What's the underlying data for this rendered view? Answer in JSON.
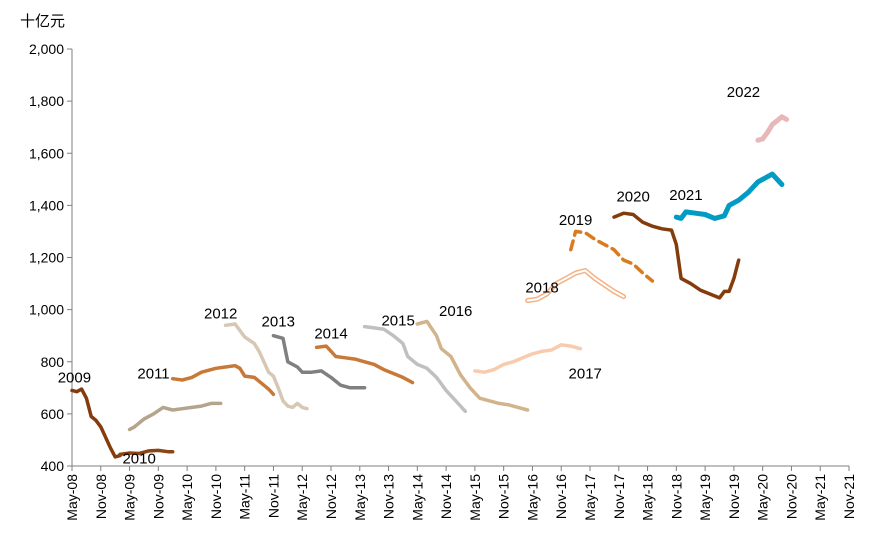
{
  "chart_data": {
    "type": "line",
    "title": "",
    "unit_label": "十亿元",
    "xlabel": "",
    "ylabel": "十亿元",
    "ylim": [
      400,
      2000
    ],
    "y_ticks": [
      "400",
      "600",
      "800",
      "1,000",
      "1,200",
      "1,400",
      "1,600",
      "1,800",
      "2,000"
    ],
    "x_ticks": [
      "May-08",
      "Nov-08",
      "May-09",
      "Nov-09",
      "May-10",
      "Nov-10",
      "May-11",
      "Nov-11",
      "May-12",
      "Nov-12",
      "May-13",
      "Nov-13",
      "May-14",
      "Nov-14",
      "May-15",
      "Nov-15",
      "May-16",
      "Nov-16",
      "May-17",
      "Nov-17",
      "May-18",
      "Nov-18",
      "May-19",
      "Nov-19",
      "May-20",
      "Nov-20",
      "May-21",
      "Nov-21"
    ],
    "x_units": "months since May-08",
    "series": [
      {
        "name": "2009",
        "color": "#843c0c",
        "style": "solid",
        "points": [
          [
            0,
            690
          ],
          [
            1,
            685
          ],
          [
            2,
            695
          ],
          [
            3,
            660
          ],
          [
            4,
            590
          ],
          [
            5,
            575
          ],
          [
            6,
            550
          ],
          [
            7,
            510
          ],
          [
            8,
            470
          ],
          [
            9,
            435
          ],
          [
            10,
            440
          ]
        ]
      },
      {
        "name": "2010",
        "color": "#8b4513",
        "style": "solid",
        "points": [
          [
            10,
            445
          ],
          [
            12,
            450
          ],
          [
            14,
            448
          ],
          [
            16,
            458
          ],
          [
            18,
            460
          ],
          [
            20,
            455
          ],
          [
            21,
            455
          ]
        ]
      },
      {
        "name": "2011",
        "color": "#b4a48c",
        "style": "solid",
        "points": [
          [
            12,
            540
          ],
          [
            13,
            550
          ],
          [
            15,
            580
          ],
          [
            17,
            600
          ],
          [
            19,
            625
          ],
          [
            21,
            615
          ],
          [
            23,
            620
          ],
          [
            25,
            625
          ],
          [
            27,
            630
          ],
          [
            29,
            640
          ],
          [
            31,
            640
          ]
        ]
      },
      {
        "name": "2012",
        "color": "#c87937",
        "style": "solid",
        "points": [
          [
            21,
            735
          ],
          [
            23,
            730
          ],
          [
            25,
            740
          ],
          [
            27,
            760
          ],
          [
            30,
            775
          ],
          [
            32,
            780
          ],
          [
            34,
            785
          ],
          [
            35,
            775
          ],
          [
            36,
            745
          ],
          [
            38,
            740
          ],
          [
            40,
            710
          ],
          [
            41,
            695
          ],
          [
            42,
            675
          ]
        ]
      },
      {
        "name": "2013",
        "color": "#d6c8b4",
        "style": "solid",
        "points": [
          [
            32,
            940
          ],
          [
            34,
            945
          ],
          [
            36,
            895
          ],
          [
            38,
            870
          ],
          [
            39,
            840
          ],
          [
            40,
            800
          ],
          [
            41,
            760
          ],
          [
            42,
            745
          ],
          [
            43,
            700
          ],
          [
            44,
            650
          ],
          [
            45,
            630
          ],
          [
            46,
            625
          ],
          [
            47,
            640
          ],
          [
            48,
            625
          ],
          [
            49,
            620
          ]
        ]
      },
      {
        "name": "2014",
        "color": "#808080",
        "style": "solid",
        "points": [
          [
            42,
            900
          ],
          [
            44,
            890
          ],
          [
            45,
            800
          ],
          [
            47,
            780
          ],
          [
            48,
            760
          ],
          [
            50,
            760
          ],
          [
            52,
            765
          ],
          [
            54,
            740
          ],
          [
            56,
            710
          ],
          [
            58,
            700
          ],
          [
            61,
            700
          ]
        ]
      },
      {
        "name": "2015",
        "color": "#c87937",
        "style": "solid",
        "points": [
          [
            51,
            855
          ],
          [
            53,
            860
          ],
          [
            55,
            820
          ],
          [
            57,
            815
          ],
          [
            59,
            810
          ],
          [
            61,
            800
          ],
          [
            63,
            790
          ],
          [
            65,
            770
          ],
          [
            67,
            755
          ],
          [
            69,
            740
          ],
          [
            71,
            720
          ]
        ]
      },
      {
        "name": "2016",
        "color": "#c0c0c0",
        "style": "solid",
        "points": [
          [
            61,
            935
          ],
          [
            63,
            930
          ],
          [
            65,
            925
          ],
          [
            67,
            900
          ],
          [
            69,
            870
          ],
          [
            70,
            820
          ],
          [
            72,
            790
          ],
          [
            74,
            775
          ],
          [
            76,
            740
          ],
          [
            78,
            690
          ],
          [
            80,
            650
          ],
          [
            82,
            610
          ]
        ]
      },
      {
        "name": "2017",
        "color": "#d2b48c",
        "style": "solid",
        "points": [
          [
            72,
            945
          ],
          [
            74,
            955
          ],
          [
            76,
            900
          ],
          [
            77,
            850
          ],
          [
            79,
            820
          ],
          [
            81,
            750
          ],
          [
            83,
            700
          ],
          [
            85,
            660
          ],
          [
            87,
            650
          ],
          [
            89,
            640
          ],
          [
            91,
            635
          ],
          [
            93,
            625
          ],
          [
            95,
            615
          ]
        ]
      },
      {
        "name": "2018",
        "color": "#f8cbad",
        "style": "solid",
        "points": [
          [
            84,
            765
          ],
          [
            86,
            760
          ],
          [
            88,
            770
          ],
          [
            90,
            790
          ],
          [
            92,
            800
          ],
          [
            94,
            815
          ],
          [
            96,
            830
          ],
          [
            98,
            840
          ],
          [
            100,
            845
          ],
          [
            102,
            865
          ],
          [
            104,
            860
          ],
          [
            106,
            850
          ]
        ]
      },
      {
        "name": "2019",
        "color": "#ffffff",
        "outline": "#f4b183",
        "style": "outline",
        "points": [
          [
            95,
            1035
          ],
          [
            97,
            1040
          ],
          [
            99,
            1060
          ],
          [
            101,
            1100
          ],
          [
            103,
            1120
          ],
          [
            105,
            1140
          ],
          [
            107,
            1150
          ],
          [
            109,
            1120
          ],
          [
            111,
            1095
          ],
          [
            113,
            1070
          ],
          [
            115,
            1050
          ]
        ]
      },
      {
        "name": "2020",
        "color": "#d97b1f",
        "style": "dashed",
        "points": [
          [
            104,
            1230
          ],
          [
            105,
            1300
          ],
          [
            107,
            1295
          ],
          [
            109,
            1270
          ],
          [
            111,
            1250
          ],
          [
            113,
            1230
          ],
          [
            115,
            1190
          ],
          [
            117,
            1175
          ],
          [
            119,
            1140
          ],
          [
            121,
            1110
          ]
        ]
      },
      {
        "name": "2021",
        "color": "#843c0c",
        "style": "solid",
        "points": [
          [
            113,
            1355
          ],
          [
            115,
            1370
          ],
          [
            117,
            1365
          ],
          [
            119,
            1335
          ],
          [
            121,
            1320
          ],
          [
            123,
            1310
          ],
          [
            125,
            1305
          ],
          [
            126,
            1250
          ],
          [
            127,
            1120
          ],
          [
            129,
            1100
          ],
          [
            131,
            1075
          ],
          [
            133,
            1060
          ],
          [
            135,
            1045
          ],
          [
            136,
            1070
          ],
          [
            137,
            1070
          ],
          [
            138,
            1120
          ],
          [
            139,
            1190
          ]
        ]
      },
      {
        "name": "2022-blue",
        "color": "#009cc4",
        "style": "thick",
        "points": [
          [
            126,
            1355
          ],
          [
            127,
            1350
          ],
          [
            128,
            1375
          ],
          [
            130,
            1370
          ],
          [
            132,
            1365
          ],
          [
            134,
            1350
          ],
          [
            136,
            1360
          ],
          [
            137,
            1400
          ],
          [
            139,
            1420
          ],
          [
            141,
            1450
          ],
          [
            143,
            1490
          ],
          [
            145,
            1510
          ],
          [
            146,
            1520
          ],
          [
            147,
            1500
          ],
          [
            148,
            1480
          ]
        ]
      },
      {
        "name": "2022-pink",
        "color": "#e8b8b8",
        "style": "thick",
        "points": [
          [
            143,
            1650
          ],
          [
            144,
            1655
          ],
          [
            145,
            1680
          ],
          [
            146,
            1710
          ],
          [
            147,
            1725
          ],
          [
            148,
            1740
          ],
          [
            149,
            1730
          ]
        ]
      }
    ],
    "year_labels": [
      {
        "text": "2009",
        "x": 0.5,
        "y": 720
      },
      {
        "text": "2010",
        "x": 14,
        "y": 410
      },
      {
        "text": "2011",
        "x": 17,
        "y": 735
      },
      {
        "text": "2012",
        "x": 31,
        "y": 965
      },
      {
        "text": "2013",
        "x": 43,
        "y": 935
      },
      {
        "text": "2014",
        "x": 54,
        "y": 890
      },
      {
        "text": "2015",
        "x": 68,
        "y": 940
      },
      {
        "text": "2016",
        "x": 80,
        "y": 975
      },
      {
        "text": "2017",
        "x": 107,
        "y": 735
      },
      {
        "text": "2018",
        "x": 98,
        "y": 1065
      },
      {
        "text": "2019",
        "x": 105,
        "y": 1325
      },
      {
        "text": "2020",
        "x": 117,
        "y": 1415
      },
      {
        "text": "2021",
        "x": 128,
        "y": 1420
      },
      {
        "text": "2022",
        "x": 140,
        "y": 1815
      }
    ],
    "legend": "none",
    "grid": false
  }
}
